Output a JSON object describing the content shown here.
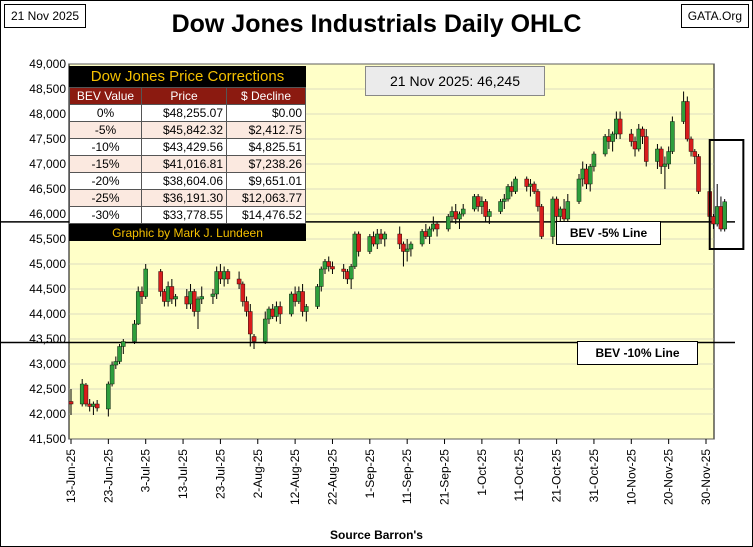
{
  "header": {
    "date": "21 Nov 2025",
    "title": "Dow Jones Industrials Daily OHLC",
    "brand": "GATA.Org"
  },
  "quote": "21 Nov 2025:  46,245",
  "source": "Source Barron's",
  "corrections_table": {
    "title": "Dow Jones Price Corrections",
    "headers": [
      "BEV Value",
      "Price",
      "$ Decline"
    ],
    "rows": [
      [
        "0%",
        "$48,255.07",
        "$0.00"
      ],
      [
        "-5%",
        "$45,842.32",
        "$2,412.75"
      ],
      [
        "-10%",
        "$43,429.56",
        "$4,825.51"
      ],
      [
        "-15%",
        "$41,016.81",
        "$7,238.26"
      ],
      [
        "-20%",
        "$38,604.06",
        "$9,651.01"
      ],
      [
        "-25%",
        "$36,191.30",
        "$12,063.77"
      ],
      [
        "-30%",
        "$33,778.55",
        "$14,476.52"
      ]
    ],
    "footer": "Graphic by Mark J. Lundeen"
  },
  "bev_lines": [
    {
      "label": "BEV -5% Line",
      "value": 45842.32
    },
    {
      "label": "BEV -10% Line",
      "value": 43429.56
    }
  ],
  "colors": {
    "plot_bg": "#ffffc8",
    "up": "#2e9e3c",
    "down": "#d81c1c"
  },
  "chart_data": {
    "type": "ohlc-candlestick",
    "title": "Dow Jones Industrials Daily OHLC",
    "xlabel": "Source Barron's",
    "ylabel": "",
    "ylim": [
      41500,
      49000
    ],
    "yticks": [
      41500,
      42000,
      42500,
      43000,
      43500,
      44000,
      44500,
      45000,
      45500,
      46000,
      46500,
      47000,
      47500,
      48000,
      48500,
      49000
    ],
    "ytick_labels": [
      "41,500",
      "42,000",
      "42,500",
      "43,000",
      "43,500",
      "44,000",
      "44,500",
      "45,000",
      "45,500",
      "46,000",
      "46,500",
      "47,000",
      "47,500",
      "48,000",
      "48,500",
      "49,000"
    ],
    "x_start": "13-Jun-25",
    "x_end": "30-Nov-25",
    "xtick_labels": [
      "13-Jun-25",
      "23-Jun-25",
      "3-Jul-25",
      "13-Jul-25",
      "23-Jul-25",
      "2-Aug-25",
      "12-Aug-25",
      "22-Aug-25",
      "1-Sep-25",
      "11-Sep-25",
      "21-Sep-25",
      "1-Oct-25",
      "11-Oct-25",
      "21-Oct-25",
      "31-Oct-25",
      "10-Nov-25",
      "20-Nov-25",
      "30-Nov-25"
    ],
    "highlight_box": {
      "from_day": 147,
      "to_day": 156,
      "low": 45300,
      "high": 47480
    },
    "ohlc": [
      [
        0,
        42250,
        42500,
        41980,
        42200
      ],
      [
        3,
        42200,
        42700,
        42150,
        42600
      ],
      [
        4,
        42580,
        42620,
        42150,
        42200
      ],
      [
        5,
        42200,
        42300,
        42050,
        42150
      ],
      [
        6,
        42150,
        42250,
        41980,
        42200
      ],
      [
        7,
        42200,
        42280,
        42050,
        42120
      ],
      [
        10,
        42100,
        42650,
        41950,
        42600
      ],
      [
        11,
        42600,
        43050,
        42550,
        42980
      ],
      [
        12,
        42980,
        43150,
        42900,
        43050
      ],
      [
        13,
        43050,
        43400,
        43000,
        43350
      ],
      [
        14,
        43350,
        43500,
        43200,
        43450
      ],
      [
        17,
        43450,
        43880,
        43400,
        43800
      ],
      [
        18,
        43800,
        44550,
        43780,
        44450
      ],
      [
        19,
        44450,
        44550,
        44200,
        44350
      ],
      [
        20,
        44350,
        45000,
        44300,
        44900
      ],
      [
        24,
        44850,
        44900,
        44350,
        44450
      ],
      [
        25,
        44450,
        44500,
        44150,
        44250
      ],
      [
        26,
        44250,
        44650,
        44150,
        44550
      ],
      [
        27,
        44550,
        44700,
        44200,
        44300
      ],
      [
        28,
        44300,
        44400,
        44150,
        44350
      ],
      [
        31,
        44350,
        44500,
        44100,
        44200
      ],
      [
        32,
        44200,
        44600,
        44100,
        44450
      ],
      [
        33,
        44450,
        44500,
        43950,
        44050
      ],
      [
        34,
        44050,
        44350,
        43700,
        44300
      ],
      [
        35,
        44300,
        44550,
        44200,
        44350
      ],
      [
        38,
        44350,
        44500,
        44200,
        44400
      ],
      [
        39,
        44400,
        44950,
        44300,
        44850
      ],
      [
        40,
        44850,
        45000,
        44600,
        44700
      ],
      [
        41,
        44700,
        44950,
        44550,
        44850
      ],
      [
        42,
        44850,
        44900,
        44600,
        44700
      ],
      [
        45,
        44700,
        44850,
        44500,
        44600
      ],
      [
        46,
        44600,
        44650,
        44150,
        44250
      ],
      [
        47,
        44250,
        44350,
        43950,
        44050
      ],
      [
        48,
        44050,
        44200,
        43350,
        43600
      ],
      [
        49,
        43550,
        43600,
        43300,
        43450
      ],
      [
        52,
        43450,
        44050,
        43400,
        43900
      ],
      [
        53,
        43900,
        44150,
        43800,
        44100
      ],
      [
        54,
        44100,
        44200,
        43900,
        43950
      ],
      [
        55,
        43950,
        44250,
        43850,
        44150
      ],
      [
        56,
        44150,
        44250,
        43800,
        44000
      ],
      [
        59,
        44000,
        44450,
        43950,
        44400
      ],
      [
        60,
        44400,
        44550,
        44150,
        44250
      ],
      [
        61,
        44250,
        44550,
        44200,
        44450
      ],
      [
        62,
        44450,
        44600,
        43950,
        44050
      ],
      [
        63,
        44050,
        44200,
        43850,
        44150
      ],
      [
        66,
        44150,
        44600,
        44100,
        44550
      ],
      [
        67,
        44550,
        44950,
        44450,
        44900
      ],
      [
        68,
        44900,
        45100,
        44800,
        45050
      ],
      [
        69,
        45050,
        45150,
        44850,
        44950
      ],
      [
        70,
        44950,
        45050,
        44800,
        44900
      ],
      [
        73,
        44900,
        45000,
        44700,
        44850
      ],
      [
        74,
        44850,
        44900,
        44600,
        44700
      ],
      [
        75,
        44700,
        45000,
        44500,
        44950
      ],
      [
        76,
        44950,
        45650,
        44900,
        45600
      ],
      [
        77,
        45600,
        45650,
        45150,
        45250
      ],
      [
        80,
        45250,
        45600,
        45200,
        45550
      ],
      [
        81,
        45550,
        45650,
        45350,
        45400
      ],
      [
        82,
        45400,
        45700,
        45300,
        45600
      ],
      [
        83,
        45600,
        45700,
        45400,
        45500
      ],
      [
        84,
        45500,
        45650,
        45350,
        45600
      ],
      [
        88,
        45600,
        45750,
        45300,
        45400
      ],
      [
        89,
        45400,
        45450,
        44950,
        45250
      ],
      [
        90,
        45250,
        45500,
        45050,
        45300
      ],
      [
        91,
        45300,
        45450,
        45150,
        45400
      ],
      [
        94,
        45400,
        45700,
        45350,
        45650
      ],
      [
        95,
        45650,
        45800,
        45500,
        45550
      ],
      [
        96,
        45550,
        45750,
        45400,
        45700
      ],
      [
        97,
        45700,
        45950,
        45650,
        45800
      ],
      [
        98,
        45800,
        45850,
        45550,
        45700
      ],
      [
        101,
        45700,
        46000,
        45650,
        45950
      ],
      [
        102,
        45950,
        46150,
        45850,
        46050
      ],
      [
        103,
        46050,
        46200,
        45800,
        45900
      ],
      [
        104,
        45900,
        46050,
        45700,
        46000
      ],
      [
        105,
        46000,
        46200,
        45950,
        46100
      ],
      [
        108,
        46100,
        46400,
        46050,
        46350
      ],
      [
        109,
        46350,
        46400,
        46050,
        46150
      ],
      [
        110,
        46150,
        46350,
        46000,
        46250
      ],
      [
        111,
        46250,
        46300,
        45850,
        45950
      ],
      [
        112,
        45950,
        46100,
        45800,
        46050
      ],
      [
        115,
        46050,
        46300,
        46000,
        46250
      ],
      [
        116,
        46250,
        46400,
        46100,
        46300
      ],
      [
        117,
        46300,
        46600,
        46250,
        46550
      ],
      [
        118,
        46550,
        46650,
        46350,
        46450
      ],
      [
        119,
        46450,
        46750,
        46400,
        46700
      ],
      [
        122,
        46700,
        46750,
        46450,
        46550
      ],
      [
        123,
        46550,
        46700,
        46350,
        46600
      ],
      [
        124,
        46600,
        46650,
        46400,
        46450
      ],
      [
        125,
        46450,
        46500,
        46050,
        46150
      ],
      [
        126,
        46150,
        46200,
        45500,
        45550
      ],
      [
        129,
        45550,
        46350,
        45400,
        46300
      ],
      [
        130,
        46300,
        46350,
        45800,
        45950
      ],
      [
        131,
        45950,
        46150,
        45650,
        46100
      ],
      [
        132,
        46100,
        46300,
        45800,
        45900
      ],
      [
        133,
        45900,
        46400,
        45850,
        46250
      ],
      [
        136,
        46250,
        46800,
        46200,
        46700
      ],
      [
        137,
        46700,
        47050,
        46550,
        46900
      ],
      [
        138,
        46900,
        47000,
        46500,
        46600
      ],
      [
        139,
        46600,
        47000,
        46450,
        46950
      ],
      [
        140,
        46950,
        47250,
        46850,
        47200
      ],
      [
        143,
        47200,
        47600,
        47150,
        47550
      ],
      [
        144,
        47550,
        47700,
        47300,
        47450
      ],
      [
        145,
        47450,
        47650,
        47250,
        47600
      ],
      [
        146,
        47600,
        48050,
        47500,
        47900
      ],
      [
        147,
        47900,
        48050,
        47500,
        47600
      ],
      [
        150,
        47600,
        47700,
        47350,
        47450
      ],
      [
        151,
        47450,
        47550,
        47150,
        47300
      ],
      [
        152,
        47300,
        47800,
        47250,
        47700
      ],
      [
        153,
        47700,
        47750,
        47400,
        47550
      ],
      [
        154,
        47550,
        47700,
        46950,
        47050
      ],
      [
        157,
        47050,
        47400,
        46900,
        47300
      ],
      [
        158,
        47300,
        47350,
        46800,
        46950
      ],
      [
        159,
        46950,
        47150,
        46500,
        47000
      ],
      [
        160,
        47000,
        47350,
        46900,
        47250
      ],
      [
        161,
        47250,
        47950,
        47200,
        47850
      ],
      [
        164,
        47850,
        48450,
        47800,
        48250
      ],
      [
        165,
        48250,
        48350,
        47450,
        47500
      ],
      [
        166,
        47500,
        47550,
        47150,
        47250
      ],
      [
        167,
        47250,
        47300,
        47000,
        47150
      ],
      [
        168,
        47150,
        47200,
        46400,
        46450
      ],
      [
        171,
        46450,
        46500,
        45900,
        45950
      ],
      [
        172,
        45950,
        46000,
        45700,
        45800
      ],
      [
        173,
        45800,
        46600,
        45750,
        46150
      ],
      [
        174,
        46150,
        46350,
        45650,
        45700
      ],
      [
        175,
        45700,
        46300,
        45650,
        46245
      ]
    ]
  }
}
